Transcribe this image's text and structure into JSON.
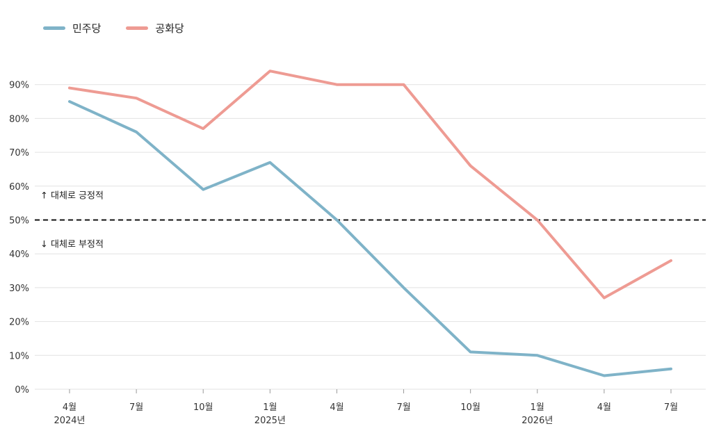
{
  "chart_data": {
    "type": "line",
    "title": "",
    "xlabel": "",
    "ylabel": "",
    "ylim": [
      0,
      100
    ],
    "yticks": [
      "0%",
      "10%",
      "20%",
      "30%",
      "40%",
      "50%",
      "60%",
      "70%",
      "80%",
      "90%"
    ],
    "categories": [
      {
        "month": "4월",
        "year": "2024년"
      },
      {
        "month": "7월",
        "year": ""
      },
      {
        "month": "10월",
        "year": ""
      },
      {
        "month": "1월",
        "year": "2025년"
      },
      {
        "month": "4월",
        "year": ""
      },
      {
        "month": "7월",
        "year": ""
      },
      {
        "month": "10월",
        "year": ""
      },
      {
        "month": "1월",
        "year": "2026년"
      },
      {
        "month": "4월",
        "year": ""
      },
      {
        "month": "7월",
        "year": ""
      }
    ],
    "series": [
      {
        "name": "민주당",
        "color": "#7fb3c8",
        "values": [
          85,
          76,
          59,
          67,
          50,
          30,
          11,
          10,
          4,
          6
        ]
      },
      {
        "name": "공화당",
        "color": "#ee9b93",
        "values": [
          89,
          86,
          77,
          94,
          90,
          90,
          66,
          50,
          27,
          38
        ]
      }
    ],
    "reference_line": {
      "value": 50,
      "style": "dashed"
    },
    "annotations": {
      "above": "↑ 대체로 긍정적",
      "below": "↓ 대체로 부정적"
    },
    "grid": true,
    "legend_position": "top-left"
  }
}
